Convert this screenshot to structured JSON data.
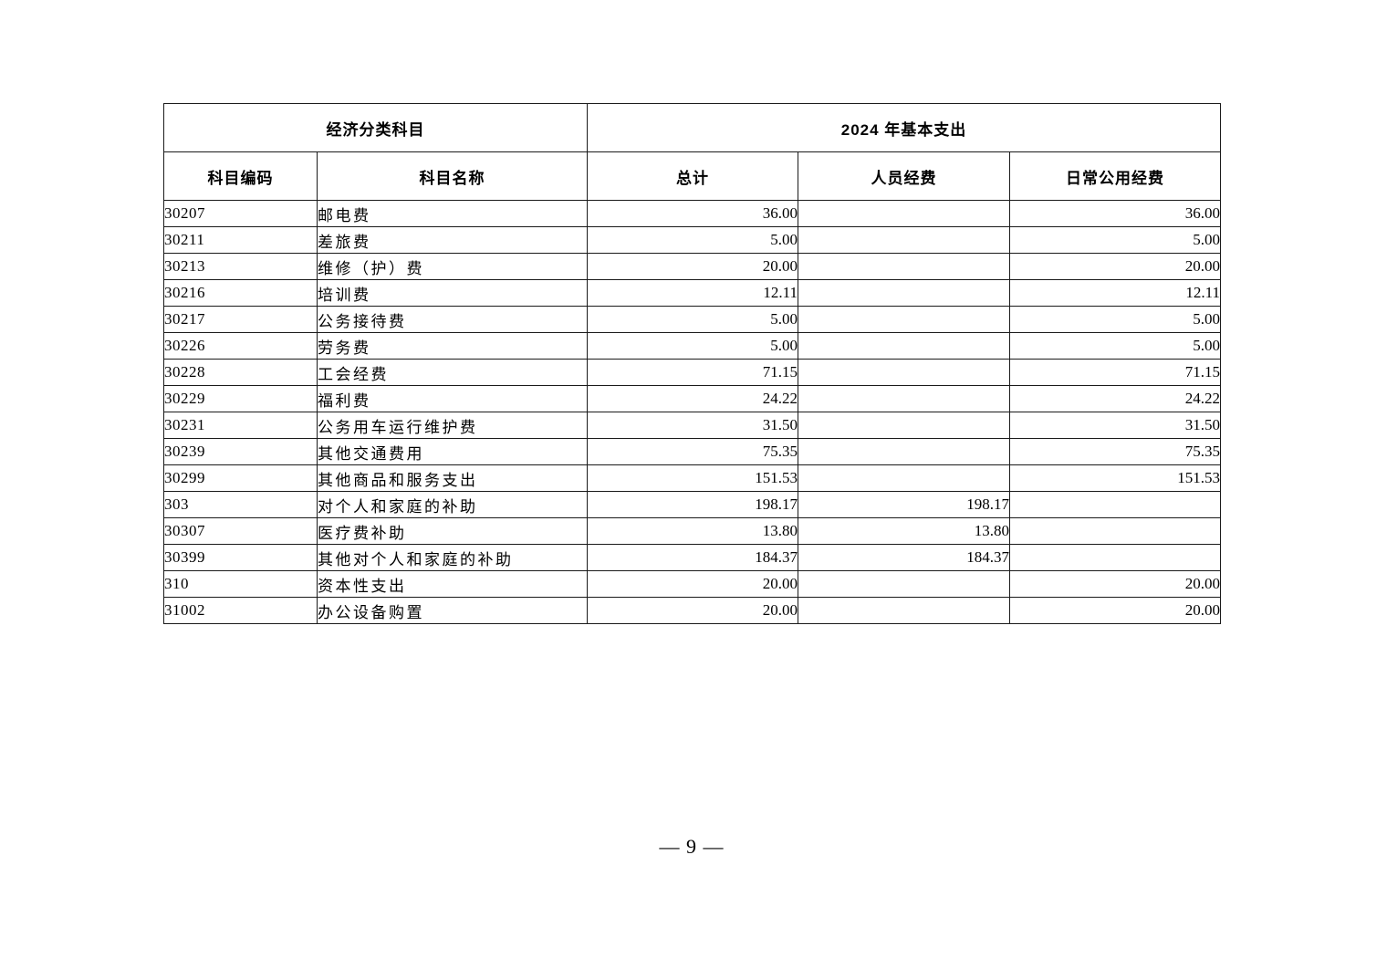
{
  "colors": {
    "background": "#ffffff",
    "text": "#000000",
    "table_border": "#1a1a1a"
  },
  "page": {
    "number_label": "— 9 —"
  },
  "table": {
    "header": {
      "group_left": "经济分类科目",
      "group_right": "2024 年基本支出",
      "columns": [
        "科目编码",
        "科目名称",
        "总计",
        "人员经费",
        "日常公用经费"
      ]
    },
    "rows": [
      {
        "code": "30207",
        "name": "邮电费",
        "total": "36.00",
        "personnel": "",
        "daily": "36.00"
      },
      {
        "code": "30211",
        "name": "差旅费",
        "total": "5.00",
        "personnel": "",
        "daily": "5.00"
      },
      {
        "code": "30213",
        "name": "维修（护）费",
        "total": "20.00",
        "personnel": "",
        "daily": "20.00"
      },
      {
        "code": "30216",
        "name": "培训费",
        "total": "12.11",
        "personnel": "",
        "daily": "12.11"
      },
      {
        "code": "30217",
        "name": "公务接待费",
        "total": "5.00",
        "personnel": "",
        "daily": "5.00"
      },
      {
        "code": "30226",
        "name": "劳务费",
        "total": "5.00",
        "personnel": "",
        "daily": "5.00"
      },
      {
        "code": "30228",
        "name": "工会经费",
        "total": "71.15",
        "personnel": "",
        "daily": "71.15"
      },
      {
        "code": "30229",
        "name": "福利费",
        "total": "24.22",
        "personnel": "",
        "daily": "24.22"
      },
      {
        "code": "30231",
        "name": "公务用车运行维护费",
        "total": "31.50",
        "personnel": "",
        "daily": "31.50"
      },
      {
        "code": "30239",
        "name": "其他交通费用",
        "total": "75.35",
        "personnel": "",
        "daily": "75.35"
      },
      {
        "code": "30299",
        "name": "其他商品和服务支出",
        "total": "151.53",
        "personnel": "",
        "daily": "151.53"
      },
      {
        "code": "303",
        "name": "对个人和家庭的补助",
        "total": "198.17",
        "personnel": "198.17",
        "daily": ""
      },
      {
        "code": "30307",
        "name": "医疗费补助",
        "total": "13.80",
        "personnel": "13.80",
        "daily": ""
      },
      {
        "code": "30399",
        "name": "其他对个人和家庭的补助",
        "total": "184.37",
        "personnel": "184.37",
        "daily": ""
      },
      {
        "code": "310",
        "name": "资本性支出",
        "total": "20.00",
        "personnel": "",
        "daily": "20.00"
      },
      {
        "code": "31002",
        "name": "办公设备购置",
        "total": "20.00",
        "personnel": "",
        "daily": "20.00"
      }
    ]
  }
}
